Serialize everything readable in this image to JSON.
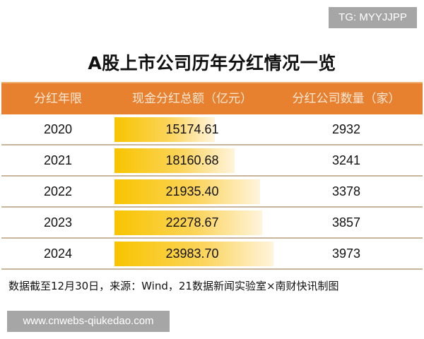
{
  "watermark_top": "TG: MYYJJPP",
  "watermark_bottom": "www.cnwebs-qiukedao.com",
  "colors": {
    "header": "#e8812f",
    "bar": "#f8c400",
    "separator": "#c9b49c"
  },
  "chart_data": {
    "type": "table",
    "title": "A股上市公司历年分红情况一览",
    "columns": [
      "分红年限",
      "现金分红总额（亿元）",
      "分红公司数量（家）"
    ],
    "rows": [
      {
        "year": "2020",
        "amount": "15174.61",
        "count": "2932"
      },
      {
        "year": "2021",
        "amount": "18160.68",
        "count": "3241"
      },
      {
        "year": "2022",
        "amount": "21935.40",
        "count": "3378"
      },
      {
        "year": "2023",
        "amount": "22278.67",
        "count": "3857"
      },
      {
        "year": "2024",
        "amount": "23983.70",
        "count": "3973"
      }
    ],
    "note": "数据截至12月30日，来源：Wind，21数据新闻实验室×南财快讯制图"
  }
}
